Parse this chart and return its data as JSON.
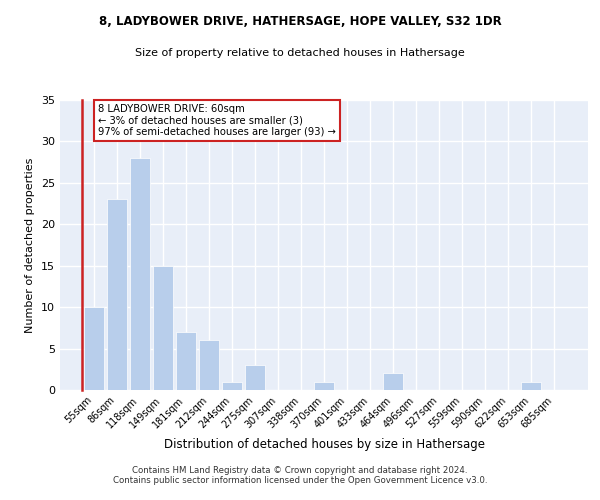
{
  "title1": "8, LADYBOWER DRIVE, HATHERSAGE, HOPE VALLEY, S32 1DR",
  "title2": "Size of property relative to detached houses in Hathersage",
  "xlabel": "Distribution of detached houses by size in Hathersage",
  "ylabel": "Number of detached properties",
  "categories": [
    "55sqm",
    "86sqm",
    "118sqm",
    "149sqm",
    "181sqm",
    "212sqm",
    "244sqm",
    "275sqm",
    "307sqm",
    "338sqm",
    "370sqm",
    "401sqm",
    "433sqm",
    "464sqm",
    "496sqm",
    "527sqm",
    "559sqm",
    "590sqm",
    "622sqm",
    "653sqm",
    "685sqm"
  ],
  "values": [
    10,
    23,
    28,
    15,
    7,
    6,
    1,
    3,
    0,
    0,
    1,
    0,
    0,
    2,
    0,
    0,
    0,
    0,
    0,
    1,
    0
  ],
  "bar_color": "#b8ceeb",
  "highlight_color": "#cc2222",
  "annotation_text": "8 LADYBOWER DRIVE: 60sqm\n← 3% of detached houses are smaller (3)\n97% of semi-detached houses are larger (93) →",
  "annotation_box_color": "white",
  "annotation_box_edge": "#cc2222",
  "ylim": [
    0,
    35
  ],
  "yticks": [
    0,
    5,
    10,
    15,
    20,
    25,
    30,
    35
  ],
  "bg_color": "#e8eef8",
  "grid_color": "white",
  "footer": "Contains HM Land Registry data © Crown copyright and database right 2024.\nContains public sector information licensed under the Open Government Licence v3.0."
}
